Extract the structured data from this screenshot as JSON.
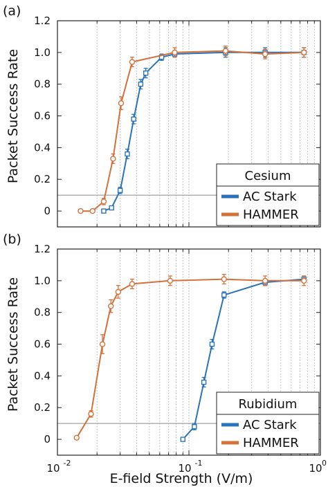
{
  "colors": {
    "ac_stark": "#2a73b8",
    "hammer": "#d4703a",
    "grid": "#b0b0b0",
    "threshold": "#8a8a8a"
  },
  "xlabel": "E-field Strength (V/m)",
  "x_tick_labels": [
    "10",
    "-2",
    "10",
    "-1",
    "10",
    "0"
  ],
  "y_tick_labels": [
    "0",
    "0.2",
    "0.4",
    "0.6",
    "0.8",
    "1.0",
    "1.2"
  ],
  "chart_data": [
    {
      "type": "line",
      "panel_label": "(a)",
      "ylabel": "Packet Success Rate",
      "legend_title": "Cesium",
      "legend_position": "bottom-right",
      "xscale": "log",
      "xlim": [
        0.01,
        1.0
      ],
      "ylim": [
        -0.1,
        1.2
      ],
      "grid": "vertical minor dotted",
      "threshold_line": 0.1,
      "series": [
        {
          "name": "AC Stark",
          "color": "#2a73b8",
          "x": [
            0.0225,
            0.0258,
            0.03,
            0.034,
            0.038,
            0.043,
            0.047,
            0.062,
            0.078,
            0.19,
            0.38,
            0.75
          ],
          "y": [
            0.0,
            0.02,
            0.13,
            0.36,
            0.58,
            0.8,
            0.87,
            0.97,
            0.99,
            1.0,
            1.0,
            1.0
          ],
          "err": [
            0.01,
            0.01,
            0.02,
            0.03,
            0.03,
            0.03,
            0.03,
            0.02,
            0.02,
            0.03,
            0.03,
            0.03
          ]
        },
        {
          "name": "HAMMER",
          "color": "#d4703a",
          "x": [
            0.015,
            0.0185,
            0.0225,
            0.0265,
            0.0305,
            0.037,
            0.078,
            0.19,
            0.38,
            0.75
          ],
          "y": [
            0.0,
            0.0,
            0.06,
            0.33,
            0.68,
            0.94,
            1.0,
            1.01,
            0.99,
            1.0
          ],
          "err": [
            0.01,
            0.01,
            0.02,
            0.03,
            0.04,
            0.03,
            0.03,
            0.03,
            0.03,
            0.03
          ]
        }
      ]
    },
    {
      "type": "line",
      "panel_label": "(b)",
      "ylabel": "Packet Success Rate",
      "legend_title": "Rubidium",
      "legend_position": "bottom-right",
      "xscale": "log",
      "xlim": [
        0.01,
        1.0
      ],
      "ylim": [
        -0.1,
        1.2
      ],
      "grid": "vertical minor dotted",
      "threshold_line": 0.1,
      "series": [
        {
          "name": "AC Stark",
          "color": "#2a73b8",
          "x": [
            0.09,
            0.11,
            0.13,
            0.15,
            0.185,
            0.38,
            0.75
          ],
          "y": [
            0.0,
            0.08,
            0.36,
            0.6,
            0.91,
            0.99,
            1.01
          ],
          "err": [
            0.01,
            0.02,
            0.03,
            0.03,
            0.02,
            0.02,
            0.02
          ]
        },
        {
          "name": "HAMMER",
          "color": "#d4703a",
          "x": [
            0.014,
            0.018,
            0.022,
            0.0255,
            0.029,
            0.037,
            0.072,
            0.185,
            0.38,
            0.75
          ],
          "y": [
            0.01,
            0.16,
            0.6,
            0.84,
            0.93,
            0.98,
            1.0,
            1.01,
            1.0,
            1.0
          ],
          "err": [
            0.01,
            0.02,
            0.06,
            0.04,
            0.04,
            0.03,
            0.03,
            0.03,
            0.03,
            0.03
          ]
        }
      ]
    }
  ]
}
